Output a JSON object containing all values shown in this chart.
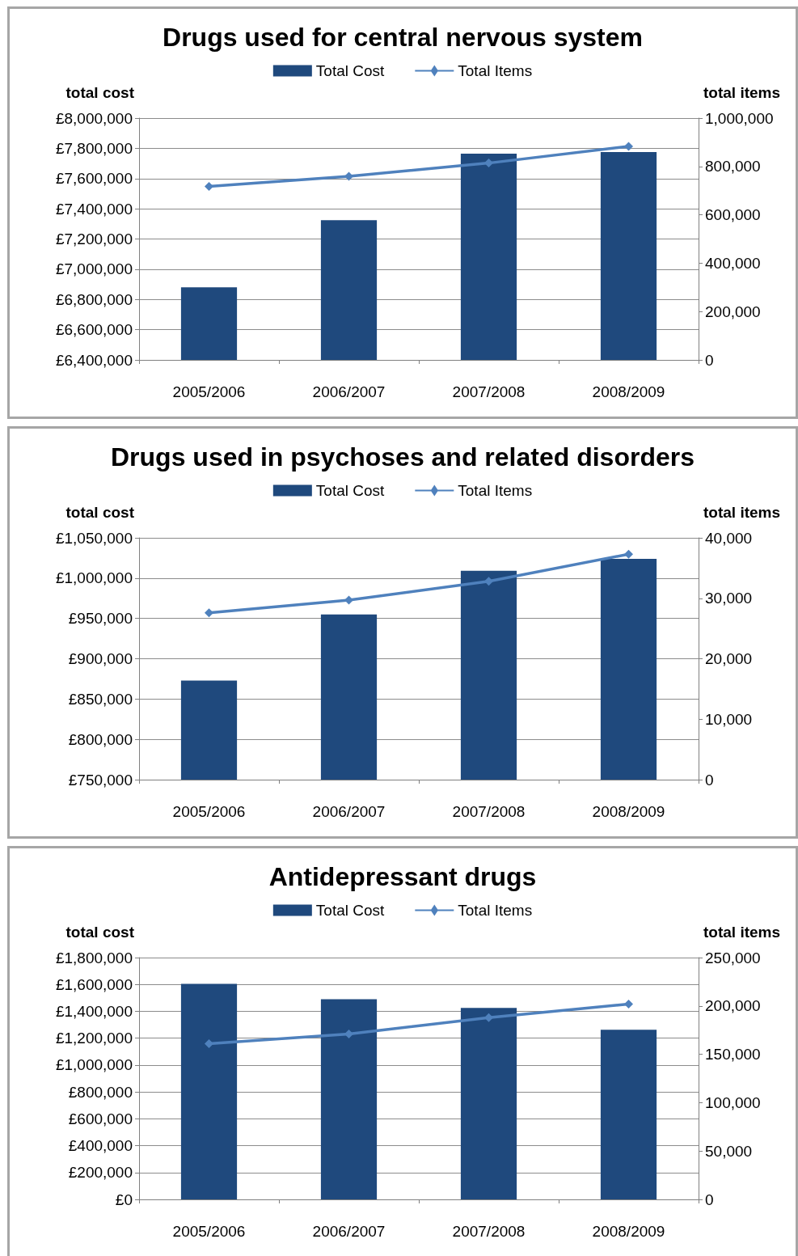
{
  "chart_data": [
    {
      "type": "bar",
      "title": "Drugs used for central nervous system",
      "ylabel": "total cost",
      "y2label": "total items",
      "categories": [
        "2005/2006",
        "2006/2007",
        "2007/2008",
        "2008/2009"
      ],
      "series": [
        {
          "name": "Total Cost",
          "type": "bar",
          "color": "#1f497d",
          "values": [
            6880000,
            7325000,
            7765000,
            7775000
          ]
        },
        {
          "name": "Total Items",
          "type": "line",
          "axis": "y2",
          "color": "#4f81bd",
          "marker": "diamond",
          "values": [
            717000,
            759000,
            814000,
            883000
          ]
        }
      ],
      "ylim": [
        6400000,
        8000000
      ],
      "yticks": [
        {
          "value": 6400000,
          "label": "£6,400,000"
        },
        {
          "value": 6600000,
          "label": "£6,600,000"
        },
        {
          "value": 6800000,
          "label": "£6,800,000"
        },
        {
          "value": 7000000,
          "label": "£7,000,000"
        },
        {
          "value": 7200000,
          "label": "£7,200,000"
        },
        {
          "value": 7400000,
          "label": "£7,400,000"
        },
        {
          "value": 7600000,
          "label": "£7,600,000"
        },
        {
          "value": 7800000,
          "label": "£7,800,000"
        },
        {
          "value": 8000000,
          "label": "£8,000,000"
        }
      ],
      "y2lim": [
        0,
        1000000
      ],
      "y2ticks": [
        {
          "value": 0,
          "label": "0"
        },
        {
          "value": 200000,
          "label": "200,000"
        },
        {
          "value": 400000,
          "label": "400,000"
        },
        {
          "value": 600000,
          "label": "600,000"
        },
        {
          "value": 800000,
          "label": "800,000"
        },
        {
          "value": 1000000,
          "label": "1,000,000"
        }
      ],
      "grid": "y",
      "legend": "top"
    },
    {
      "type": "bar",
      "title": "Drugs used in psychoses and related disorders",
      "ylabel": "total cost",
      "y2label": "total items",
      "categories": [
        "2005/2006",
        "2006/2007",
        "2007/2008",
        "2008/2009"
      ],
      "series": [
        {
          "name": "Total Cost",
          "type": "bar",
          "color": "#1f497d",
          "values": [
            873000,
            955000,
            1009000,
            1024000
          ]
        },
        {
          "name": "Total Items",
          "type": "line",
          "axis": "y2",
          "color": "#4f81bd",
          "marker": "diamond",
          "values": [
            27600,
            29700,
            32800,
            37300
          ]
        }
      ],
      "ylim": [
        750000,
        1050000
      ],
      "yticks": [
        {
          "value": 750000,
          "label": "£750,000"
        },
        {
          "value": 800000,
          "label": "£800,000"
        },
        {
          "value": 850000,
          "label": "£850,000"
        },
        {
          "value": 900000,
          "label": "£900,000"
        },
        {
          "value": 950000,
          "label": "£950,000"
        },
        {
          "value": 1000000,
          "label": "£1,000,000"
        },
        {
          "value": 1050000,
          "label": "£1,050,000"
        }
      ],
      "y2lim": [
        0,
        40000
      ],
      "y2ticks": [
        {
          "value": 0,
          "label": "0"
        },
        {
          "value": 10000,
          "label": "10,000"
        },
        {
          "value": 20000,
          "label": "20,000"
        },
        {
          "value": 30000,
          "label": "30,000"
        },
        {
          "value": 40000,
          "label": "40,000"
        }
      ],
      "grid": "y",
      "legend": "top"
    },
    {
      "type": "bar",
      "title": "Antidepressant drugs",
      "ylabel": "total cost",
      "y2label": "total items",
      "categories": [
        "2005/2006",
        "2006/2007",
        "2007/2008",
        "2008/2009"
      ],
      "series": [
        {
          "name": "Total Cost",
          "type": "bar",
          "color": "#1f497d",
          "values": [
            1605000,
            1490000,
            1425000,
            1263000
          ]
        },
        {
          "name": "Total Items",
          "type": "line",
          "axis": "y2",
          "color": "#4f81bd",
          "marker": "diamond",
          "values": [
            161000,
            171000,
            188000,
            202000
          ]
        }
      ],
      "ylim": [
        0,
        1800000
      ],
      "yticks": [
        {
          "value": 0,
          "label": "£0"
        },
        {
          "value": 200000,
          "label": "£200,000"
        },
        {
          "value": 400000,
          "label": "£400,000"
        },
        {
          "value": 600000,
          "label": "£600,000"
        },
        {
          "value": 800000,
          "label": "£800,000"
        },
        {
          "value": 1000000,
          "label": "£1,000,000"
        },
        {
          "value": 1200000,
          "label": "£1,200,000"
        },
        {
          "value": 1400000,
          "label": "£1,400,000"
        },
        {
          "value": 1600000,
          "label": "£1,600,000"
        },
        {
          "value": 1800000,
          "label": "£1,800,000"
        }
      ],
      "y2lim": [
        0,
        250000
      ],
      "y2ticks": [
        {
          "value": 0,
          "label": "0"
        },
        {
          "value": 50000,
          "label": "50,000"
        },
        {
          "value": 100000,
          "label": "100,000"
        },
        {
          "value": 150000,
          "label": "150,000"
        },
        {
          "value": 200000,
          "label": "200,000"
        },
        {
          "value": 250000,
          "label": "250,000"
        }
      ],
      "grid": "y",
      "legend": "top"
    }
  ]
}
